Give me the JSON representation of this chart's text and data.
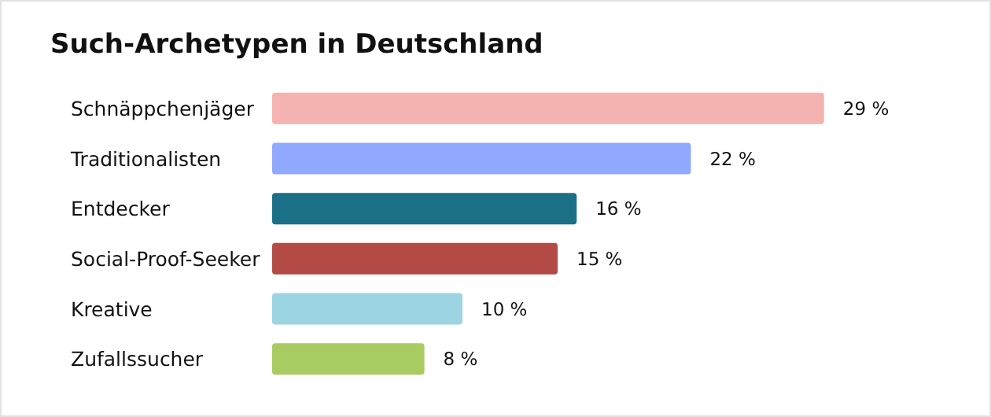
{
  "chart_data": {
    "type": "bar",
    "orientation": "horizontal",
    "title": "Such-Archetypen in Deutschland",
    "categories": [
      "Schnäppchenjäger",
      "Traditionalisten",
      "Entdecker",
      "Social-Proof-Seeker",
      "Kreative",
      "Zufallssucher"
    ],
    "values": [
      29,
      22,
      16,
      15,
      10,
      8
    ],
    "colors": [
      "#f4b3b0",
      "#91a8ff",
      "#1b6f87",
      "#b34a45",
      "#9cd4e2",
      "#a8cb62"
    ],
    "value_labels": [
      "29 %",
      "22 %",
      "16 %",
      "15 %",
      "10 %",
      "8 %"
    ]
  }
}
